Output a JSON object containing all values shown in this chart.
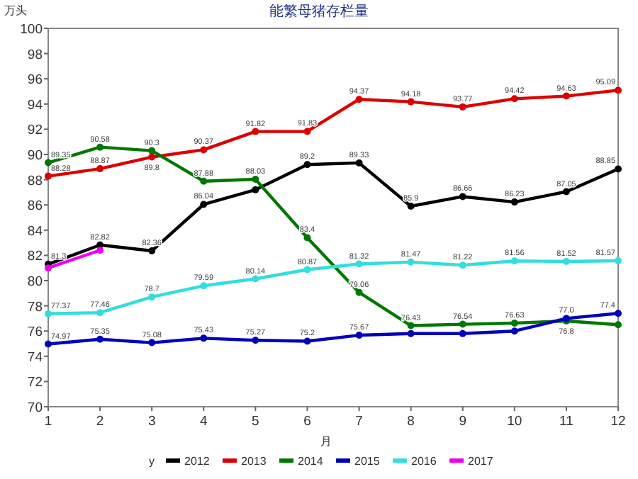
{
  "chart_data": {
    "type": "line",
    "title": "能繁母猪存栏量",
    "ylabel": "万头",
    "xlabel": "月",
    "legend_title": "y",
    "legend": "bottom",
    "marker": "circle",
    "grid": false,
    "x": [
      1,
      2,
      3,
      4,
      5,
      6,
      7,
      8,
      9,
      10,
      11,
      12
    ],
    "xlim": [
      1,
      12
    ],
    "xticks": [
      1,
      2,
      3,
      4,
      5,
      6,
      7,
      8,
      9,
      10,
      11,
      12
    ],
    "ylim": [
      70,
      100
    ],
    "yticks": [
      70,
      72,
      74,
      76,
      78,
      80,
      82,
      84,
      86,
      88,
      90,
      92,
      94,
      96,
      98,
      100
    ],
    "series": [
      {
        "name": "2012",
        "color": "#000000",
        "values": [
          81.3,
          82.82,
          82.36,
          86.04,
          87.2,
          89.2,
          89.33,
          85.9,
          86.66,
          86.23,
          87.05,
          88.85
        ],
        "value_labels": [
          "81.3",
          "82.82",
          "82.36",
          "86.04",
          null,
          "89.2",
          "89.33",
          "85.9",
          "86.66",
          "86.23",
          "87.05",
          "88.85"
        ]
      },
      {
        "name": "2013",
        "color": "#dd0000",
        "values": [
          88.28,
          88.87,
          89.8,
          90.37,
          91.82,
          91.83,
          94.37,
          94.18,
          93.77,
          94.42,
          94.63,
          95.09
        ],
        "value_labels": [
          "88.28",
          "88.87",
          "89.8",
          "90.37",
          "91.82",
          "91.83",
          "94.37",
          "94.18",
          "93.77",
          "94.42",
          "94.63",
          "95.09"
        ]
      },
      {
        "name": "2014",
        "color": "#007700",
        "values": [
          89.35,
          90.58,
          90.3,
          87.88,
          88.03,
          83.4,
          79.06,
          76.43,
          76.54,
          76.63,
          76.8,
          76.5
        ],
        "value_labels": [
          "89.35",
          "90.58",
          "90.3",
          "87.88",
          "88.03",
          "83.4",
          "79.06",
          "76.43",
          "76.54",
          "76.63",
          "76.8",
          null
        ]
      },
      {
        "name": "2015",
        "color": "#0000bb",
        "values": [
          74.97,
          75.35,
          75.08,
          75.43,
          75.27,
          75.2,
          75.67,
          75.8,
          75.8,
          76.0,
          77.0,
          77.4
        ],
        "value_labels": [
          "74.97",
          "75.35",
          "75.08",
          "75.43",
          "75.27",
          "75.2",
          "75.67",
          null,
          null,
          null,
          "77.0",
          "77.4"
        ]
      },
      {
        "name": "2016",
        "color": "#33dddd",
        "values": [
          77.37,
          77.46,
          78.7,
          79.59,
          80.14,
          80.87,
          81.32,
          81.47,
          81.22,
          81.56,
          81.52,
          81.57
        ],
        "value_labels": [
          "77.37",
          "77.46",
          "78.7",
          "79.59",
          "80.14",
          "80.87",
          "81.32",
          "81.47",
          "81.22",
          "81.56",
          "81.52",
          "81.57"
        ]
      },
      {
        "name": "2017",
        "color": "#ee00ee",
        "values": [
          81.0,
          82.4,
          null,
          null,
          null,
          null,
          null,
          null,
          null,
          null,
          null,
          null
        ],
        "value_labels": [
          null,
          null,
          null,
          null,
          null,
          null,
          null,
          null,
          null,
          null,
          null,
          null
        ]
      }
    ]
  }
}
